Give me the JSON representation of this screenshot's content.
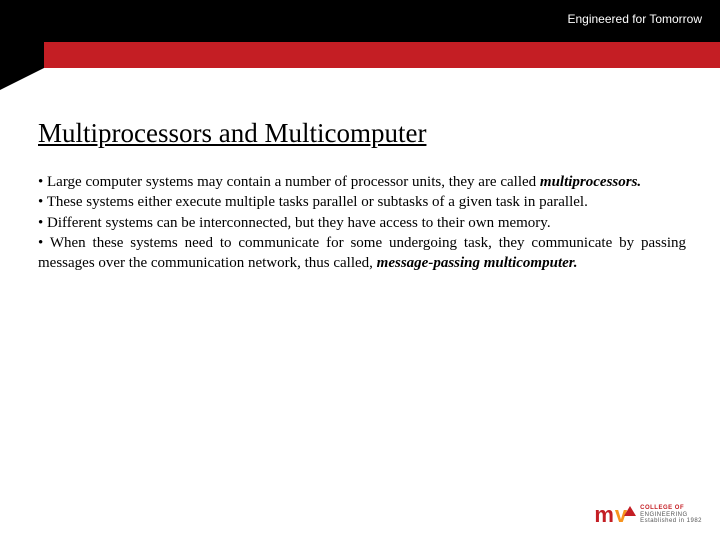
{
  "header": {
    "tagline": "Engineered for Tomorrow",
    "colors": {
      "black": "#000000",
      "red": "#c41e24",
      "white": "#ffffff"
    }
  },
  "slide": {
    "title": "Multiprocessors and Multicomputer",
    "title_fontsize": 27,
    "body_fontsize": 15,
    "bullets": {
      "b1_pre": "• Large computer systems may contain a number of processor units, they are called ",
      "b1_bold": "multiprocessors.",
      "b2": "• These systems either execute multiple tasks parallel or subtasks of a given task in parallel.",
      "b3": "• Different systems can be interconnected, but they have access to their own memory.",
      "b4_pre": "• When these systems need to communicate for some undergoing task, they communicate by passing messages over the communication network, thus called, ",
      "b4_bold": "message-passing multicomputer."
    }
  },
  "logo": {
    "m": "m",
    "v": "v",
    "line1": "COLLEGE OF",
    "line2": "ENGINEERING",
    "line3": "Established in 1982"
  }
}
